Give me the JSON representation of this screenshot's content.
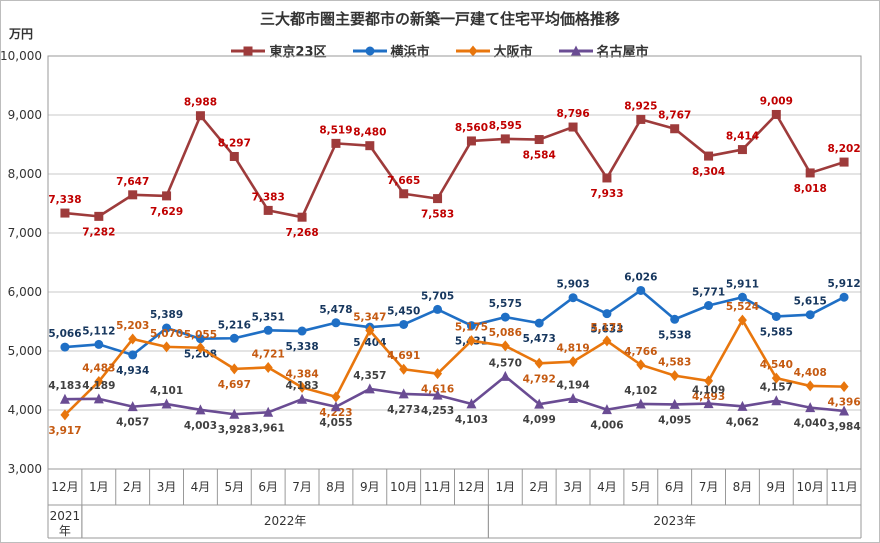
{
  "chart_data": {
    "type": "line",
    "title": "三大都市圏主要都市の新築一戸建て住宅平均価格推移",
    "ylabel": "万円",
    "ylim": [
      3000,
      10000
    ],
    "yticks": [
      3000,
      4000,
      5000,
      6000,
      7000,
      8000,
      9000,
      10000
    ],
    "ytick_labels": [
      "3,000",
      "4,000",
      "5,000",
      "6,000",
      "7,000",
      "8,000",
      "9,000",
      "10,000"
    ],
    "categories": [
      "12月",
      "1月",
      "2月",
      "3月",
      "4月",
      "5月",
      "6月",
      "7月",
      "8月",
      "9月",
      "10月",
      "11月",
      "12月",
      "1月",
      "2月",
      "3月",
      "4月",
      "5月",
      "6月",
      "7月",
      "8月",
      "9月",
      "10月",
      "11月"
    ],
    "year_groups": [
      {
        "label": "2021\n年",
        "start": 0,
        "end": 0
      },
      {
        "label": "2022年",
        "start": 1,
        "end": 12
      },
      {
        "label": "2023年",
        "start": 13,
        "end": 23
      }
    ],
    "grid": true,
    "legend_position": "top",
    "series": [
      {
        "name": "東京23区",
        "color": "#9e3b3b",
        "label_color": "#c00000",
        "marker": "square",
        "values": [
          7338,
          7282,
          7647,
          7629,
          8988,
          8297,
          7383,
          7268,
          8519,
          8480,
          7665,
          7583,
          8560,
          8595,
          8584,
          8796,
          7933,
          8925,
          8767,
          8304,
          8414,
          9009,
          8018,
          8202
        ]
      },
      {
        "name": "横浜市",
        "color": "#1f6fc5",
        "label_color": "#17375e",
        "marker": "circle",
        "values": [
          5066,
          5112,
          4934,
          5389,
          5208,
          5216,
          5351,
          5338,
          5478,
          5404,
          5450,
          5705,
          5431,
          5575,
          5473,
          5903,
          5633,
          6026,
          5538,
          5771,
          5911,
          5585,
          5615,
          5912
        ]
      },
      {
        "name": "大阪市",
        "color": "#e8760d",
        "label_color": "#c55a11",
        "marker": "diamond",
        "values": [
          3917,
          4483,
          5203,
          5070,
          5055,
          4697,
          4721,
          4384,
          4223,
          5347,
          4691,
          4616,
          5175,
          5086,
          4792,
          4819,
          5171,
          4766,
          4583,
          4493,
          5524,
          4540,
          4408,
          4396
        ]
      },
      {
        "name": "名古屋市",
        "color": "#6a4c93",
        "label_color": "#404040",
        "marker": "triangle",
        "values": [
          4183,
          4189,
          4057,
          4101,
          4003,
          3928,
          3961,
          4183,
          4055,
          4357,
          4273,
          4253,
          4103,
          4570,
          4099,
          4194,
          4006,
          4102,
          4095,
          4109,
          4062,
          4157,
          4040,
          3984
        ]
      }
    ]
  }
}
